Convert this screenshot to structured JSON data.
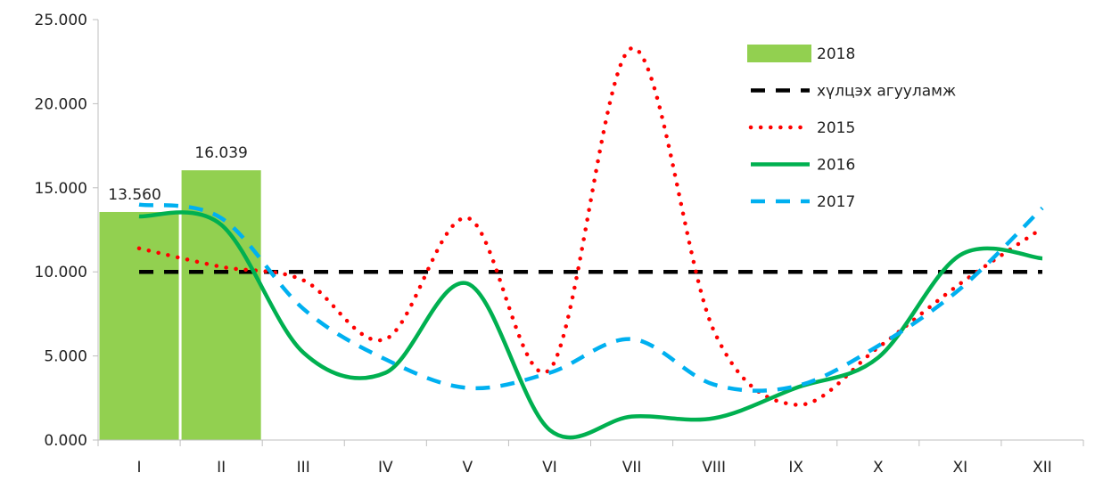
{
  "chart_data": {
    "type": "bar+line",
    "categories": [
      "I",
      "II",
      "III",
      "IV",
      "V",
      "VI",
      "VII",
      "VIII",
      "IX",
      "X",
      "XI",
      "XII"
    ],
    "y_ticks": [
      "0.000",
      "5.000",
      "10.000",
      "15.000",
      "20.000",
      "25.000"
    ],
    "ylim": [
      0,
      25
    ],
    "grid": false,
    "legend_position": "top-right",
    "bars": {
      "name": "2018",
      "color": "#92d050",
      "values": [
        13.56,
        16.039
      ],
      "labels": [
        "13.560",
        "16.039"
      ]
    },
    "series": [
      {
        "name": "хүлцэх агууламж",
        "color": "#000000",
        "style": "dashed",
        "values": [
          10,
          10,
          10,
          10,
          10,
          10,
          10,
          10,
          10,
          10,
          10,
          10
        ]
      },
      {
        "name": "2015",
        "color": "#ff0000",
        "style": "dotted",
        "values": [
          11.4,
          10.3,
          9.5,
          6,
          13.2,
          4.2,
          23.3,
          6.5,
          2.1,
          5.5,
          9.3,
          12.6
        ]
      },
      {
        "name": "2016",
        "color": "#00b050",
        "style": "solid",
        "values": [
          13.3,
          12.8,
          5.2,
          4,
          9.3,
          0.6,
          1.4,
          1.3,
          3.1,
          4.9,
          11,
          10.8
        ]
      },
      {
        "name": "2017",
        "color": "#00b0f0",
        "style": "dashed",
        "values": [
          14,
          13.2,
          7.8,
          4.8,
          3.1,
          4,
          6,
          3.3,
          3.2,
          5.6,
          9,
          13.8
        ]
      }
    ]
  }
}
